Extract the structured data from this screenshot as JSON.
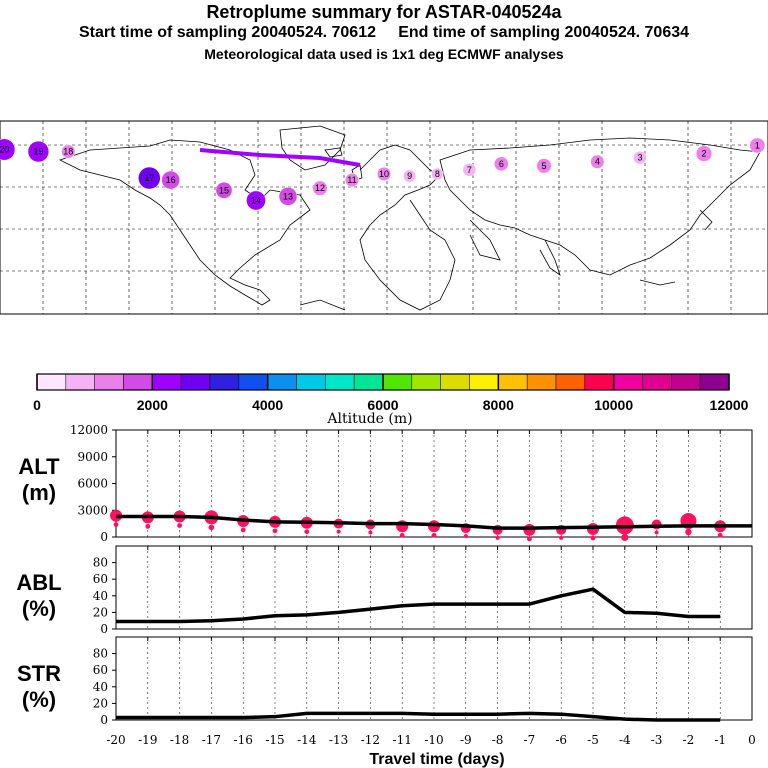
{
  "header": {
    "title": "Retroplume summary for ASTAR-040524a",
    "subtitle": "Start time of sampling 20040524. 70612     End time of sampling 20040524. 70634",
    "meteo": "Meteorological data used is 1x1 deg ECMWF analyses"
  },
  "map": {
    "description_labels": [
      "20",
      "19",
      "14",
      "7",
      "9",
      "15",
      "6",
      "2",
      "3",
      "10",
      "1",
      "12",
      "11",
      "5",
      "4",
      "8",
      "13",
      "16",
      "18",
      "17"
    ],
    "points": [
      {
        "day": 20,
        "lon": -178,
        "lat": 76,
        "alt": 2400
      },
      {
        "day": 19,
        "lon": -162,
        "lat": 75,
        "alt": 2300
      },
      {
        "day": 18,
        "lon": -148,
        "lat": 75,
        "alt": 1000
      },
      {
        "day": 17,
        "lon": -110,
        "lat": 62,
        "alt": 2500
      },
      {
        "day": 16,
        "lon": -100,
        "lat": 61,
        "alt": 1800
      },
      {
        "day": 15,
        "lon": -75,
        "lat": 56,
        "alt": 1500
      },
      {
        "day": 14,
        "lon": -60,
        "lat": 51,
        "alt": 2000
      },
      {
        "day": 13,
        "lon": -45,
        "lat": 53,
        "alt": 1800
      },
      {
        "day": 12,
        "lon": -30,
        "lat": 57,
        "alt": 1200
      },
      {
        "day": 11,
        "lon": -15,
        "lat": 61,
        "alt": 1000
      },
      {
        "day": 10,
        "lon": 0,
        "lat": 64,
        "alt": 1000
      },
      {
        "day": 9,
        "lon": 12,
        "lat": 63,
        "alt": 800
      },
      {
        "day": 8,
        "lon": 25,
        "lat": 64,
        "alt": 700
      },
      {
        "day": 7,
        "lon": 40,
        "lat": 66,
        "alt": 900
      },
      {
        "day": 6,
        "lon": 55,
        "lat": 69,
        "alt": 1100
      },
      {
        "day": 5,
        "lon": 75,
        "lat": 68,
        "alt": 1200
      },
      {
        "day": 4,
        "lon": 100,
        "lat": 70,
        "alt": 1000
      },
      {
        "day": 3,
        "lon": 120,
        "lat": 72,
        "alt": 900
      },
      {
        "day": 2,
        "lon": 150,
        "lat": 74,
        "alt": 1400
      },
      {
        "day": 1,
        "lon": 175,
        "lat": 78,
        "alt": 1300
      }
    ]
  },
  "colorbar": {
    "ticks": [
      "0",
      "2000",
      "4000",
      "6000",
      "8000",
      "10000",
      "12000"
    ],
    "label": "Altitude (m)",
    "colors": [
      "#ffe6ff",
      "#f5b3f5",
      "#eb80eb",
      "#d24be6",
      "#a000ff",
      "#7000f0",
      "#3020e0",
      "#1050f0",
      "#0a90f0",
      "#00c8e6",
      "#00e6c8",
      "#00e696",
      "#50e600",
      "#a0e600",
      "#dcdc00",
      "#fff000",
      "#ffc000",
      "#ff9000",
      "#ff6000",
      "#ff0050",
      "#f000a0",
      "#e00090",
      "#c00090",
      "#900090"
    ]
  },
  "chart_data": [
    {
      "type": "line",
      "name": "ALT",
      "ylabel": "ALT (m)",
      "ylabel_line1": "ALT",
      "ylabel_line2": "(m)",
      "ylim": [
        0,
        12000
      ],
      "yticks": [
        "12000",
        "9000",
        "6000",
        "3000",
        "0"
      ],
      "x": [
        -20,
        -19,
        -18,
        -17,
        -16,
        -15,
        -14,
        -13,
        -12,
        -11,
        -10,
        -9,
        -8,
        -7,
        -6,
        -5,
        -4,
        -3,
        -2,
        -1,
        0
      ],
      "values": [
        2300,
        2300,
        2300,
        2200,
        1900,
        1700,
        1650,
        1600,
        1500,
        1500,
        1400,
        1250,
        1000,
        1000,
        1050,
        1100,
        1150,
        1200,
        1250,
        1250,
        1250
      ],
      "markers": [
        {
          "x": -20,
          "y": 2400,
          "r": 6
        },
        {
          "x": -19,
          "y": 2200,
          "r": 6
        },
        {
          "x": -18,
          "y": 2300,
          "r": 6
        },
        {
          "x": -17,
          "y": 2200,
          "r": 7
        },
        {
          "x": -16,
          "y": 1800,
          "r": 6
        },
        {
          "x": -15,
          "y": 1700,
          "r": 6
        },
        {
          "x": -14,
          "y": 1600,
          "r": 6
        },
        {
          "x": -13,
          "y": 1500,
          "r": 5
        },
        {
          "x": -12,
          "y": 1400,
          "r": 5
        },
        {
          "x": -11,
          "y": 1200,
          "r": 6
        },
        {
          "x": -10,
          "y": 1200,
          "r": 6
        },
        {
          "x": -9,
          "y": 1000,
          "r": 5
        },
        {
          "x": -8,
          "y": 800,
          "r": 5
        },
        {
          "x": -7,
          "y": 800,
          "r": 6
        },
        {
          "x": -6,
          "y": 800,
          "r": 5
        },
        {
          "x": -5,
          "y": 900,
          "r": 6
        },
        {
          "x": -4,
          "y": 1300,
          "r": 9
        },
        {
          "x": -3,
          "y": 1400,
          "r": 5
        },
        {
          "x": -2,
          "y": 1800,
          "r": 8
        },
        {
          "x": -1,
          "y": 1200,
          "r": 6
        }
      ],
      "marker_color": "#ff1060"
    },
    {
      "type": "line",
      "name": "ABL",
      "ylabel": "ABL (%)",
      "ylabel_line1": "ABL",
      "ylabel_line2": "(%)",
      "ylim": [
        0,
        100
      ],
      "yticks": [
        "80",
        "60",
        "40",
        "20",
        "0"
      ],
      "x": [
        -20,
        -19,
        -18,
        -17,
        -16,
        -15,
        -14,
        -13,
        -12,
        -11,
        -10,
        -9,
        -8,
        -7,
        -6,
        -5,
        -4,
        -3,
        -2,
        -1
      ],
      "values": [
        9,
        9,
        9,
        10,
        12,
        16,
        17,
        20,
        24,
        28,
        30,
        30,
        30,
        30,
        40,
        48,
        20,
        19,
        15,
        15
      ]
    },
    {
      "type": "line",
      "name": "STR",
      "ylabel": "STR (%)",
      "ylabel_line1": "STR",
      "ylabel_line2": "(%)",
      "ylim": [
        0,
        100
      ],
      "yticks": [
        "80",
        "60",
        "40",
        "20",
        "0"
      ],
      "x": [
        -20,
        -19,
        -18,
        -17,
        -16,
        -15,
        -14,
        -13,
        -12,
        -11,
        -10,
        -9,
        -8,
        -7,
        -6,
        -5,
        -4,
        -3,
        -2,
        -1
      ],
      "values": [
        3,
        3,
        3,
        3,
        3,
        4,
        8,
        8,
        8,
        8,
        7,
        7,
        7,
        8,
        7,
        4,
        1,
        0,
        0,
        0
      ]
    }
  ],
  "xaxis": {
    "title": "Travel time (days)",
    "ticks": [
      "-20",
      "-19",
      "-18",
      "-17",
      "-16",
      "-15",
      "-14",
      "-13",
      "-12",
      "-11",
      "-10",
      "-9",
      "-8",
      "-7",
      "-6",
      "-5",
      "-4",
      "-3",
      "-2",
      "-1",
      "0"
    ]
  }
}
